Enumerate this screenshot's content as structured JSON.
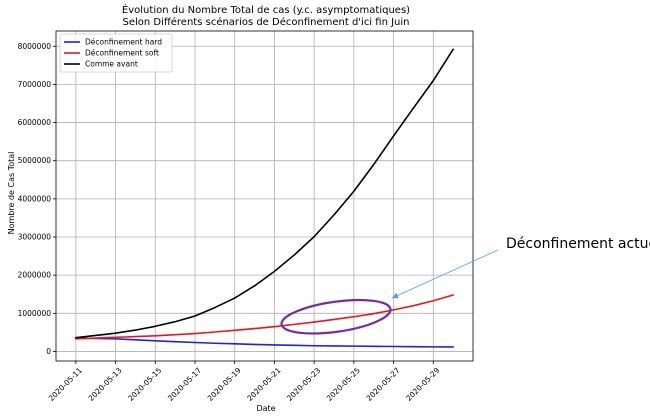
{
  "chart_data": {
    "type": "line",
    "title_line1": "Évolution du Nombre Total de cas (y.c. asymptomatiques)",
    "title_line2": "Selon Différents scénarios de Déconfinement d'ici fin Juin",
    "xlabel": "Date",
    "ylabel": "Nombre de Cas Total",
    "x_tick_labels": [
      "2020-05-11",
      "2020-05-13",
      "2020-05-15",
      "2020-05-17",
      "2020-05-19",
      "2020-05-21",
      "2020-05-23",
      "2020-05-25",
      "2020-05-27",
      "2020-05-29"
    ],
    "y_tick_labels": [
      "0",
      "1000000",
      "2000000",
      "3000000",
      "4000000",
      "5000000",
      "6000000",
      "7000000",
      "8000000"
    ],
    "xlim": [
      "2020-05-10",
      "2020-05-31"
    ],
    "ylim": [
      -250000,
      8400000
    ],
    "grid": true,
    "legend_position": "top-left",
    "x": [
      "2020-05-11",
      "2020-05-12",
      "2020-05-13",
      "2020-05-14",
      "2020-05-15",
      "2020-05-16",
      "2020-05-17",
      "2020-05-18",
      "2020-05-19",
      "2020-05-20",
      "2020-05-21",
      "2020-05-22",
      "2020-05-23",
      "2020-05-24",
      "2020-05-25",
      "2020-05-26",
      "2020-05-27",
      "2020-05-28",
      "2020-05-29",
      "2020-05-30"
    ],
    "series": [
      {
        "name": "Déconfinement hard",
        "color": "#1f1fe6",
        "values": [
          350000,
          340000,
          330000,
          305000,
          280000,
          255000,
          235000,
          215000,
          200000,
          185000,
          170000,
          160000,
          150000,
          145000,
          140000,
          135000,
          130000,
          125000,
          120000,
          118000
        ]
      },
      {
        "name": "Déconfinement soft",
        "color": "#e8171b",
        "values": [
          330000,
          350000,
          370000,
          390000,
          410000,
          440000,
          470000,
          510000,
          555000,
          600000,
          650000,
          710000,
          770000,
          840000,
          910000,
          990000,
          1090000,
          1200000,
          1330000,
          1480000
        ]
      },
      {
        "name": "Comme avant",
        "color": "#000000",
        "values": [
          360000,
          420000,
          480000,
          560000,
          660000,
          780000,
          930000,
          1150000,
          1400000,
          1720000,
          2100000,
          2530000,
          3010000,
          3580000,
          4200000,
          4900000,
          5650000,
          6380000,
          7100000,
          7920000
        ]
      }
    ],
    "annotation": {
      "text": "Déconfinement actuel",
      "ellipse_color": "#7030a0",
      "arrow_color": "#5b9bd5",
      "ellipse_center": [
        "2020-05-24",
        910000
      ]
    }
  }
}
